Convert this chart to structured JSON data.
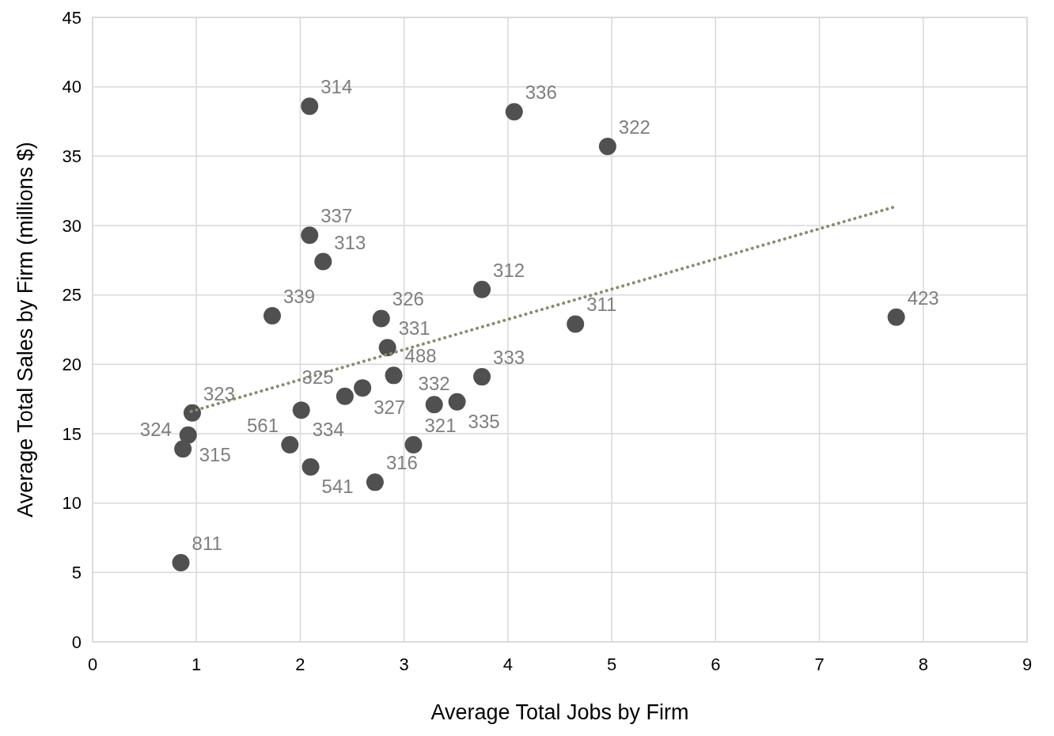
{
  "chart_data": {
    "type": "scatter",
    "xlabel": "Average Total Jobs by Firm",
    "ylabel": "Average Total Sales by Firm (millions $)",
    "xlim": [
      0,
      9
    ],
    "xticks": [
      0,
      1,
      2,
      3,
      4,
      5,
      6,
      7,
      8,
      9
    ],
    "ylim": [
      0,
      45
    ],
    "yticks": [
      0,
      5,
      10,
      15,
      20,
      25,
      30,
      35,
      40,
      45
    ],
    "grid": true,
    "legend": false,
    "marker": "circle",
    "series": [
      {
        "color": "#505050",
        "x": [
          2.09,
          4.06,
          4.96,
          2.09,
          2.22,
          1.73,
          2.78,
          3.75,
          4.65,
          7.74,
          2.84,
          2.9,
          3.75,
          2.6,
          2.43,
          2.01,
          0.96,
          0.92,
          0.87,
          1.9,
          2.1,
          2.72,
          3.09,
          3.29,
          3.51,
          0.85
        ],
        "values": [
          38.6,
          38.2,
          35.7,
          29.3,
          27.4,
          23.5,
          23.3,
          25.4,
          22.9,
          23.4,
          21.2,
          19.2,
          19.1,
          18.3,
          17.7,
          16.7,
          16.5,
          14.9,
          13.9,
          14.2,
          12.6,
          11.5,
          14.2,
          17.1,
          17.3,
          5.7
        ]
      },
      {
        "type": "line",
        "color": "#8c8a6a",
        "line_style": "dotted",
        "marker": "none",
        "x": [
          0.95,
          7.75
        ],
        "values": [
          16.6,
          31.4
        ]
      }
    ],
    "annotations": [
      {
        "text": "314",
        "x": 2.09,
        "y": 38.6
      },
      {
        "text": "336",
        "x": 4.06,
        "y": 38.2
      },
      {
        "text": "322",
        "x": 4.96,
        "y": 35.7
      },
      {
        "text": "337",
        "x": 2.09,
        "y": 29.3
      },
      {
        "text": "313",
        "x": 2.22,
        "y": 27.4
      },
      {
        "text": "339",
        "x": 1.73,
        "y": 23.5
      },
      {
        "text": "326",
        "x": 2.78,
        "y": 23.3
      },
      {
        "text": "312",
        "x": 3.75,
        "y": 25.4
      },
      {
        "text": "311",
        "x": 4.65,
        "y": 22.9
      },
      {
        "text": "423",
        "x": 7.74,
        "y": 23.4
      },
      {
        "text": "331",
        "x": 2.84,
        "y": 21.2
      },
      {
        "text": "488",
        "x": 2.9,
        "y": 19.2
      },
      {
        "text": "333",
        "x": 3.75,
        "y": 19.1
      },
      {
        "text": "327",
        "x": 2.6,
        "y": 18.3
      },
      {
        "text": "325",
        "x": 2.43,
        "y": 17.7
      },
      {
        "text": "334",
        "x": 2.01,
        "y": 16.7
      },
      {
        "text": "323",
        "x": 0.96,
        "y": 16.5
      },
      {
        "text": "315",
        "x": 0.92,
        "y": 14.9
      },
      {
        "text": "324",
        "x": 0.87,
        "y": 13.9
      },
      {
        "text": "561",
        "x": 1.9,
        "y": 14.2
      },
      {
        "text": "541",
        "x": 2.1,
        "y": 12.6
      },
      {
        "text": "316",
        "x": 2.72,
        "y": 11.5
      },
      {
        "text": "321",
        "x": 3.09,
        "y": 14.2
      },
      {
        "text": "332",
        "x": 3.29,
        "y": 17.1
      },
      {
        "text": "335",
        "x": 3.51,
        "y": 17.3
      },
      {
        "text": "811",
        "x": 0.85,
        "y": 5.7
      }
    ]
  }
}
